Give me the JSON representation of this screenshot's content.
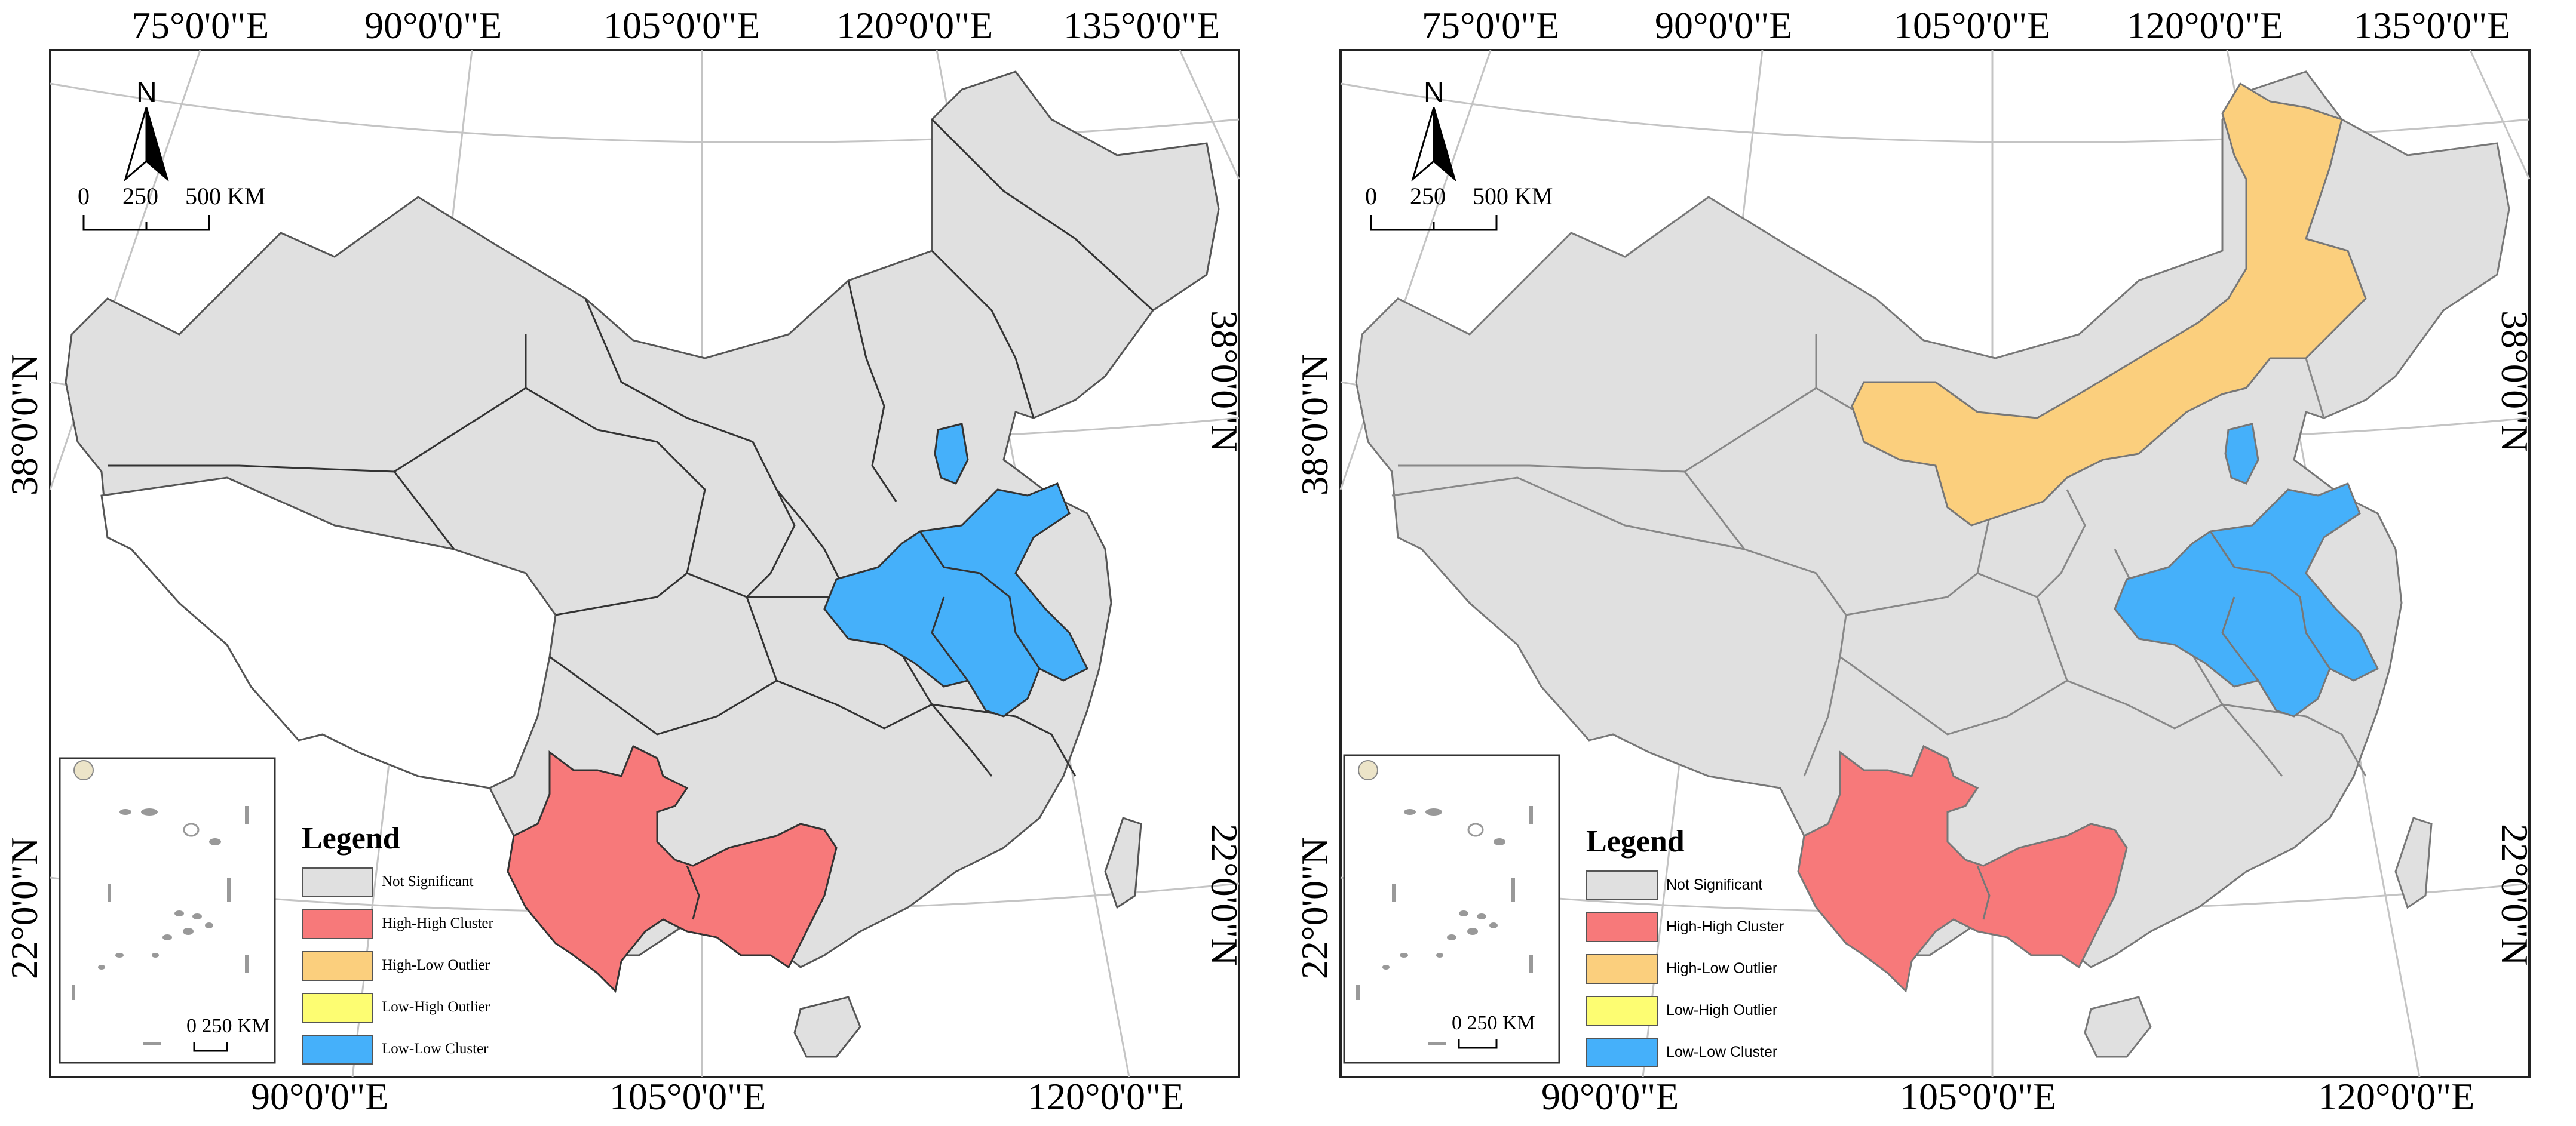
{
  "colors": {
    "not_significant": "#e0e0e0",
    "high_high": "#f7797a",
    "high_low": "#fbcf7d",
    "low_high": "#fdfd72",
    "low_low": "#45b0fa",
    "graticule": "#bdbdbd",
    "background": "#ffffff"
  },
  "legend": {
    "title": "Legend",
    "items": [
      {
        "label": "Not Significant",
        "color": "#e0e0e0"
      },
      {
        "label": "High-High Cluster",
        "color": "#f7797a"
      },
      {
        "label": "High-Low Outlier",
        "color": "#fbcf7d"
      },
      {
        "label": "Low-High Outlier",
        "color": "#fdfd72"
      },
      {
        "label": "Low-Low Cluster",
        "color": "#45b0fa"
      }
    ]
  },
  "graticule": {
    "top_labels": [
      "75°0'0\"E",
      "90°0'0\"E",
      "105°0'0\"E",
      "120°0'0\"E",
      "135°0'0\"E"
    ],
    "bottom_labels": [
      "90°0'0\"E",
      "105°0'0\"E",
      "120°0'0\"E"
    ],
    "left_labels": [
      "38°0'0\"N",
      "22°0'0\"N"
    ],
    "right_labels": [
      "38°0'0\"N",
      "22°0'0\"N"
    ]
  },
  "north_arrow": {
    "label": "N"
  },
  "scale_bar": {
    "ticks": [
      "0",
      "250",
      "500 KM"
    ]
  },
  "inset": {
    "scale_label": "0   250 KM"
  },
  "maps": [
    {
      "id": "left",
      "clusters": {
        "high_high": [
          "Yunnan",
          "Guangxi"
        ],
        "low_low": [
          "Tianjin",
          "Shandong",
          "Henan",
          "Anhui",
          "Jiangsu"
        ],
        "high_low": []
      }
    },
    {
      "id": "right",
      "clusters": {
        "high_high": [
          "Yunnan",
          "Guangxi"
        ],
        "low_low": [
          "Tianjin",
          "Shandong",
          "Henan",
          "Anhui",
          "Jiangsu"
        ],
        "high_low": [
          "Inner Mongolia"
        ]
      }
    }
  ]
}
